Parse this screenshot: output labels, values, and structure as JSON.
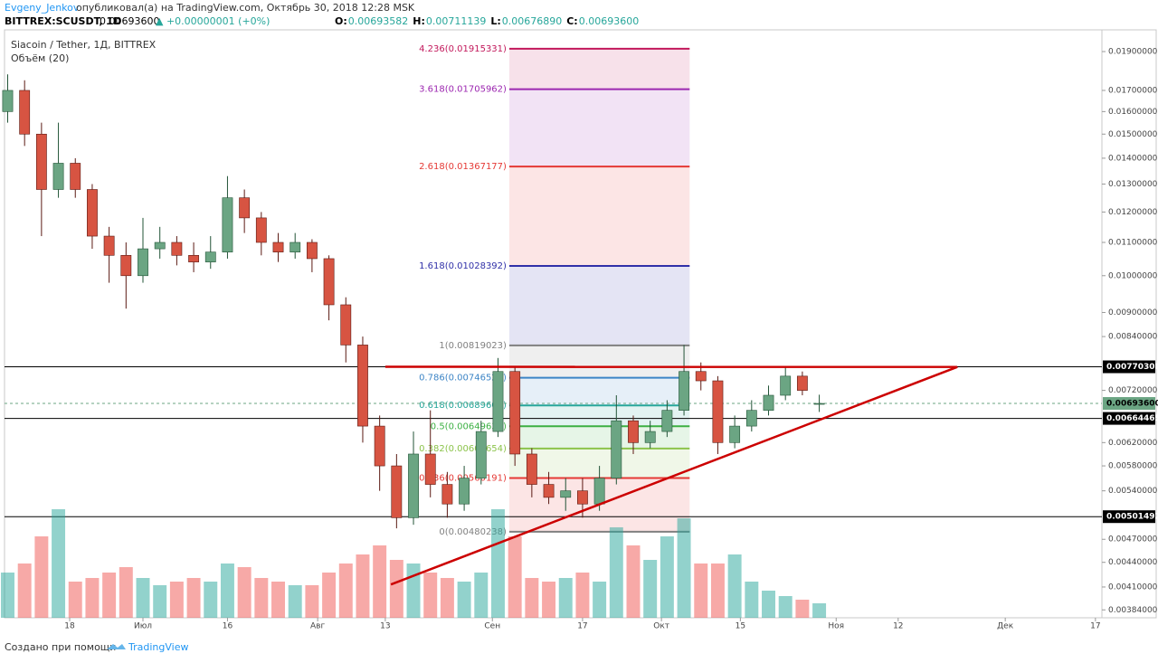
{
  "header": {
    "author": "Evgeny_Jenkov",
    "published": "опубликовал(а) на TradingView.com, Октябрь 30, 2018 12:28 MSK",
    "symbol": "BITTREX:SCUSDT, 1D",
    "last": "0.00693600",
    "change": "▲ +0.00000001 (+0%)",
    "quote": [
      {
        "label": "O:",
        "value": "0.00693582"
      },
      {
        "label": "H:",
        "value": "0.00711139"
      },
      {
        "label": "L:",
        "value": "0.00676890"
      },
      {
        "label": "C:",
        "value": "0.00693600"
      }
    ]
  },
  "footer": {
    "made_with": "Создано при помощи",
    "brand": "TradingView"
  },
  "chart_data": {
    "type": "candlestick",
    "title": "Siacoin / Tether, 1Д, BITTREX",
    "volume_label": "Объём (20)",
    "up_color": "#6ba583",
    "down_color": "#d75442",
    "log_scale": true,
    "x": [
      158,
      161,
      164,
      167,
      170,
      173,
      176,
      179,
      182,
      185,
      188,
      191,
      194,
      197,
      200,
      203,
      206,
      209,
      212,
      215,
      218,
      221,
      224,
      227,
      230,
      233,
      236,
      239,
      242,
      245,
      248,
      251,
      254,
      257,
      260,
      263,
      266,
      269,
      272,
      275,
      278,
      281,
      284,
      287,
      290,
      293,
      296,
      299,
      302
    ],
    "open": [
      0.016,
      0.017,
      0.015,
      0.0128,
      0.0138,
      0.0128,
      0.0112,
      0.0106,
      0.01,
      0.0108,
      0.011,
      0.0106,
      0.0104,
      0.0107,
      0.0125,
      0.0118,
      0.011,
      0.0107,
      0.011,
      0.0105,
      0.0092,
      0.0082,
      0.0065,
      0.0058,
      0.005,
      0.006,
      0.0055,
      0.0052,
      0.0056,
      0.0064,
      0.0076,
      0.006,
      0.0055,
      0.0053,
      0.0054,
      0.0052,
      0.0056,
      0.0066,
      0.0062,
      0.0064,
      0.0068,
      0.0076,
      0.0074,
      0.0062,
      0.0065,
      0.0068,
      0.0071,
      0.0075,
      0.00693582
    ],
    "high": [
      0.0178,
      0.0175,
      0.0155,
      0.0155,
      0.014,
      0.013,
      0.0115,
      0.011,
      0.0118,
      0.0115,
      0.0112,
      0.011,
      0.0112,
      0.0133,
      0.0128,
      0.012,
      0.0113,
      0.0113,
      0.0111,
      0.0106,
      0.0094,
      0.0084,
      0.0067,
      0.006,
      0.0064,
      0.0068,
      0.0057,
      0.0058,
      0.0066,
      0.0079,
      0.0077,
      0.0061,
      0.0057,
      0.0056,
      0.0056,
      0.0058,
      0.0071,
      0.0067,
      0.0066,
      0.007,
      0.0082,
      0.0078,
      0.0075,
      0.0067,
      0.007,
      0.0073,
      0.0077,
      0.0076,
      0.00711139
    ],
    "low": [
      0.0155,
      0.0145,
      0.0112,
      0.0125,
      0.0125,
      0.0108,
      0.0098,
      0.0091,
      0.0098,
      0.0105,
      0.0103,
      0.0101,
      0.0102,
      0.0105,
      0.0113,
      0.0106,
      0.0104,
      0.0105,
      0.0101,
      0.0088,
      0.0078,
      0.0062,
      0.0054,
      0.00485,
      0.0049,
      0.0053,
      0.005,
      0.0051,
      0.0055,
      0.0063,
      0.0058,
      0.0053,
      0.0052,
      0.0051,
      0.005,
      0.0051,
      0.0055,
      0.006,
      0.0061,
      0.0063,
      0.0067,
      0.0072,
      0.006,
      0.0061,
      0.0064,
      0.0067,
      0.007,
      0.0071,
      0.0067689
    ],
    "close": [
      0.017,
      0.015,
      0.0128,
      0.0138,
      0.0128,
      0.0112,
      0.0106,
      0.01,
      0.0108,
      0.011,
      0.0106,
      0.0104,
      0.0107,
      0.0125,
      0.0118,
      0.011,
      0.0107,
      0.011,
      0.0105,
      0.0092,
      0.0082,
      0.0065,
      0.0058,
      0.005,
      0.006,
      0.0055,
      0.0052,
      0.0056,
      0.0064,
      0.0076,
      0.006,
      0.0055,
      0.0053,
      0.0054,
      0.0052,
      0.0056,
      0.0066,
      0.0062,
      0.0064,
      0.0068,
      0.0076,
      0.0074,
      0.0062,
      0.0065,
      0.0068,
      0.0071,
      0.0075,
      0.0072,
      0.006936
    ],
    "volume": [
      25,
      30,
      45,
      60,
      20,
      22,
      25,
      28,
      22,
      18,
      20,
      22,
      20,
      30,
      28,
      22,
      20,
      18,
      18,
      25,
      30,
      35,
      40,
      32,
      30,
      25,
      22,
      20,
      25,
      60,
      45,
      22,
      20,
      22,
      25,
      20,
      50,
      40,
      32,
      45,
      55,
      30,
      30,
      35,
      20,
      15,
      12,
      10,
      8
    ],
    "vlim": [
      0,
      100
    ],
    "xlim": [
      157.44,
      352.15
    ],
    "xticks": [
      {
        "value": 169,
        "label": "18"
      },
      {
        "value": 182,
        "label": "Июл"
      },
      {
        "value": 197,
        "label": "16"
      },
      {
        "value": 213,
        "label": "Авг"
      },
      {
        "value": 225,
        "label": "13"
      },
      {
        "value": 244,
        "label": "Сен"
      },
      {
        "value": 260,
        "label": "17"
      },
      {
        "value": 274,
        "label": "Окт"
      },
      {
        "value": 288,
        "label": "15"
      },
      {
        "value": 305,
        "label": "Ноя"
      },
      {
        "value": 316,
        "label": "12"
      },
      {
        "value": 335,
        "label": "Дек"
      },
      {
        "value": 351,
        "label": "17"
      }
    ],
    "ylim": [
      0.003754,
      0.02022
    ],
    "yticks": [
      {
        "value": 0.019,
        "label": "0.01900000"
      },
      {
        "value": 0.017,
        "label": "0.01700000"
      },
      {
        "value": 0.016,
        "label": "0.01600000"
      },
      {
        "value": 0.015,
        "label": "0.01500000"
      },
      {
        "value": 0.014,
        "label": "0.01400000"
      },
      {
        "value": 0.013,
        "label": "0.01300000"
      },
      {
        "value": 0.012,
        "label": "0.01200000"
      },
      {
        "value": 0.011,
        "label": "0.01100000"
      },
      {
        "value": 0.01,
        "label": "0.01000000"
      },
      {
        "value": 0.009,
        "label": "0.00900000"
      },
      {
        "value": 0.0084,
        "label": "0.00840000"
      },
      {
        "value": 0.0072,
        "label": "0.00720000"
      },
      {
        "value": 0.0062,
        "label": "0.00620000"
      },
      {
        "value": 0.0058,
        "label": "0.00580000"
      },
      {
        "value": 0.0054,
        "label": "0.00540000"
      },
      {
        "value": 0.0047,
        "label": "0.00470000"
      },
      {
        "value": 0.0044,
        "label": "0.00440000"
      },
      {
        "value": 0.0041,
        "label": "0.00410000"
      },
      {
        "value": 0.00384,
        "label": "0.00384000"
      }
    ],
    "hlines": [
      {
        "value": 0.00770308,
        "label": "0.00770308",
        "color": "#000000",
        "dashed": false
      },
      {
        "value": 0.006936,
        "label": "0.00693600",
        "color": "#6ba583",
        "dashed": true
      },
      {
        "value": 0.00664465,
        "label": "0.00664465",
        "color": "#000000",
        "dashed": false
      },
      {
        "value": 0.00501492,
        "label": "0.00501492",
        "color": "#000000",
        "dashed": false
      }
    ],
    "fib_x": [
      247.0,
      279.0
    ],
    "fib_levels": [
      {
        "value": 0.01915331,
        "label": "4.236(0.01915331)",
        "color": "#c2185b"
      },
      {
        "value": 0.01705962,
        "label": "3.618(0.01705962)",
        "color": "#9c27b0"
      },
      {
        "value": 0.01367177,
        "label": "2.618(0.01367177)",
        "color": "#e53935"
      },
      {
        "value": 0.01028392,
        "label": "1.618(0.01028392)",
        "color": "#3030a8"
      },
      {
        "value": 0.00819023,
        "label": "1(0.00819023)",
        "color": "#808080"
      },
      {
        "value": 0.00746523,
        "label": "0.786(0.00746523)",
        "color": "#3d85c6"
      },
      {
        "value": 0.00689607,
        "label": "0.618(0.00689607)",
        "color": "#26a69a"
      },
      {
        "value": 0.0064963,
        "label": "0.5(0.00649630)",
        "color": "#3cb043"
      },
      {
        "value": 0.00609654,
        "label": "0.382(0.00609654)",
        "color": "#8bc34a"
      },
      {
        "value": 0.00560191,
        "label": "0.236(0.00560191)",
        "color": "#e53935"
      },
      {
        "value": 0.00480238,
        "label": "0(0.00480238)",
        "color": "#808080"
      }
    ],
    "trendlines": [
      {
        "x": [
          225.0,
          326.5
        ],
        "y": [
          0.00770308,
          0.0077
        ],
        "color": "#cc0000"
      },
      {
        "x": [
          226.0,
          326.5
        ],
        "y": [
          0.00413,
          0.0077
        ],
        "color": "#cc0000"
      }
    ]
  }
}
